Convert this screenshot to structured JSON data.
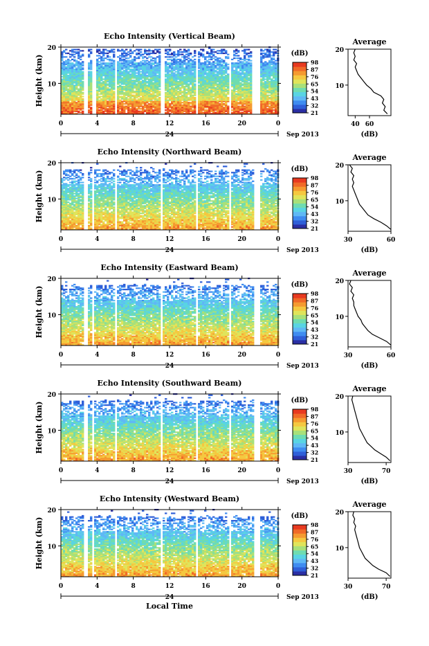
{
  "figure": {
    "unit_label": "(dB)",
    "date_label": "Sep 2013",
    "xlabel": "Local Time",
    "ylabel": "Height (km)",
    "day_label": "24",
    "colorbar_colors": [
      "#2b2fa4",
      "#2f5fd8",
      "#3f8cf0",
      "#5fb8f5",
      "#59d4e3",
      "#6fdcb0",
      "#a8e07a",
      "#e0e45a",
      "#f5c840",
      "#f59a30",
      "#f06a28",
      "#e83a20"
    ]
  },
  "chart_data": [
    {
      "type": "heatmap",
      "title": "Echo Intensity (Vertical Beam)",
      "xlabel": "",
      "ylabel": "Height (km)",
      "xlim": [
        0,
        24
      ],
      "ylim": [
        1.5,
        20
      ],
      "x_ticks": [
        "0",
        "4",
        "8",
        "12",
        "16",
        "20",
        "0"
      ],
      "y_ticks": [
        "20",
        "10"
      ],
      "colorbar": {
        "label": "(dB)",
        "ticks": [
          "98",
          "87",
          "76",
          "65",
          "54",
          "43",
          "32",
          "21"
        ]
      },
      "data_gaps_hours": [
        [
          2.5,
          2.9
        ],
        [
          3.4,
          3.7
        ],
        [
          5.8,
          6.0
        ],
        [
          11.0,
          11.3
        ],
        [
          14.9,
          15.1
        ],
        [
          18.4,
          18.6
        ],
        [
          21.0,
          21.9
        ]
      ],
      "echo_top_km": 19.5,
      "average_profile": {
        "title": "Average",
        "xlabel": "(dB)",
        "xlim": [
          30,
          90
        ],
        "x_ticks": [
          "40",
          "60"
        ],
        "y_ticks": [
          "20",
          "10"
        ],
        "height_km": [
          2,
          3,
          4,
          5,
          6,
          7,
          8,
          9,
          10,
          11,
          12,
          13,
          14,
          15,
          16,
          17,
          18,
          19,
          20
        ],
        "db": [
          85,
          80,
          82,
          78,
          80,
          76,
          66,
          62,
          56,
          52,
          48,
          44,
          42,
          40,
          42,
          38,
          40,
          38,
          40
        ]
      }
    },
    {
      "type": "heatmap",
      "title": "Echo Intensity (Northward Beam)",
      "xlabel": "",
      "ylabel": "Height (km)",
      "xlim": [
        0,
        24
      ],
      "ylim": [
        1.5,
        20
      ],
      "x_ticks": [
        "0",
        "4",
        "8",
        "12",
        "16",
        "20",
        "0"
      ],
      "y_ticks": [
        "20",
        "10"
      ],
      "colorbar": {
        "label": "(dB)",
        "ticks": [
          "98",
          "87",
          "76",
          "65",
          "54",
          "43",
          "32",
          "21"
        ]
      },
      "data_gaps_hours": [
        [
          2.5,
          2.8
        ],
        [
          3.3,
          3.6
        ],
        [
          5.8,
          6.0
        ],
        [
          11.0,
          11.2
        ],
        [
          14.9,
          15.1
        ],
        [
          18.4,
          18.6
        ],
        [
          21.2,
          21.8
        ]
      ],
      "echo_top_km": 18.0,
      "average_profile": {
        "title": "Average",
        "xlabel": "(dB)",
        "xlim": [
          30,
          60
        ],
        "x_ticks": [
          "30",
          "60"
        ],
        "y_ticks": [
          "20",
          "10"
        ],
        "height_km": [
          2,
          3,
          4,
          5,
          6,
          7,
          8,
          9,
          10,
          11,
          12,
          13,
          14,
          15,
          16,
          17,
          18,
          19,
          20
        ],
        "db": [
          60,
          57,
          53,
          48,
          44,
          42,
          40,
          38,
          37,
          36,
          35,
          34,
          33,
          34,
          33,
          34,
          32,
          33,
          31
        ]
      }
    },
    {
      "type": "heatmap",
      "title": "Echo Intensity (Eastward Beam)",
      "xlabel": "",
      "ylabel": "Height (km)",
      "xlim": [
        0,
        24
      ],
      "ylim": [
        1.5,
        20
      ],
      "x_ticks": [
        "0",
        "4",
        "8",
        "12",
        "16",
        "20",
        "0"
      ],
      "y_ticks": [
        "20",
        "10"
      ],
      "colorbar": {
        "label": "(dB)",
        "ticks": [
          "98",
          "87",
          "76",
          "65",
          "54",
          "43",
          "32",
          "21"
        ]
      },
      "data_gaps_hours": [
        [
          2.5,
          2.8
        ],
        [
          3.3,
          3.6
        ],
        [
          5.8,
          6.0
        ],
        [
          11.0,
          11.2
        ],
        [
          14.9,
          15.1
        ],
        [
          18.4,
          18.6
        ],
        [
          21.2,
          21.8
        ]
      ],
      "echo_top_km": 18.0,
      "average_profile": {
        "title": "Average",
        "xlabel": "(dB)",
        "xlim": [
          30,
          60
        ],
        "x_ticks": [
          "30",
          "60"
        ],
        "y_ticks": [
          "20",
          "10"
        ],
        "height_km": [
          2,
          3,
          4,
          5,
          6,
          7,
          8,
          9,
          10,
          11,
          12,
          13,
          14,
          15,
          16,
          17,
          18,
          19,
          20
        ],
        "db": [
          60,
          57,
          52,
          47,
          44,
          42,
          40,
          39,
          37,
          36,
          35,
          34,
          34,
          33,
          34,
          32,
          33,
          31,
          32
        ]
      }
    },
    {
      "type": "heatmap",
      "title": "Echo Intensity (Southward Beam)",
      "xlabel": "",
      "ylabel": "Height (km)",
      "xlim": [
        0,
        24
      ],
      "ylim": [
        1.5,
        20
      ],
      "x_ticks": [
        "0",
        "4",
        "8",
        "12",
        "16",
        "20",
        "0"
      ],
      "y_ticks": [
        "20",
        "10"
      ],
      "colorbar": {
        "label": "(dB)",
        "ticks": [
          "98",
          "87",
          "76",
          "65",
          "54",
          "43",
          "32",
          "21"
        ]
      },
      "data_gaps_hours": [
        [
          2.5,
          2.8
        ],
        [
          3.3,
          3.6
        ],
        [
          5.8,
          6.0
        ],
        [
          11.0,
          11.2
        ],
        [
          14.9,
          15.1
        ],
        [
          18.4,
          18.6
        ],
        [
          21.2,
          21.8
        ]
      ],
      "echo_top_km": 18.0,
      "average_profile": {
        "title": "Average",
        "xlabel": "(dB)",
        "xlim": [
          30,
          75
        ],
        "x_ticks": [
          "30",
          "70"
        ],
        "y_ticks": [
          "20",
          "10"
        ],
        "height_km": [
          2,
          3,
          4,
          5,
          6,
          7,
          8,
          9,
          10,
          11,
          12,
          13,
          14,
          15,
          16,
          17,
          18,
          19,
          20
        ],
        "db": [
          74,
          70,
          64,
          58,
          54,
          50,
          48,
          46,
          44,
          42,
          41,
          40,
          39,
          38,
          37,
          36,
          35,
          34,
          35
        ]
      }
    },
    {
      "type": "heatmap",
      "title": "Echo Intensity (Westward Beam)",
      "xlabel": "Local Time",
      "ylabel": "Height (km)",
      "xlim": [
        0,
        24
      ],
      "ylim": [
        1.5,
        20
      ],
      "x_ticks": [
        "0",
        "4",
        "8",
        "12",
        "16",
        "20",
        "0"
      ],
      "y_ticks": [
        "20",
        "10"
      ],
      "colorbar": {
        "label": "(dB)",
        "ticks": [
          "98",
          "87",
          "76",
          "65",
          "54",
          "43",
          "32",
          "21"
        ]
      },
      "data_gaps_hours": [
        [
          2.5,
          2.8
        ],
        [
          3.3,
          3.6
        ],
        [
          5.8,
          6.0
        ],
        [
          11.0,
          11.2
        ],
        [
          14.9,
          15.1
        ],
        [
          18.4,
          18.6
        ],
        [
          21.2,
          21.8
        ]
      ],
      "echo_top_km": 18.0,
      "average_profile": {
        "title": "Average",
        "xlabel": "(dB)",
        "xlim": [
          30,
          75
        ],
        "x_ticks": [
          "30",
          "70"
        ],
        "y_ticks": [
          "20",
          "10"
        ],
        "height_km": [
          2,
          3,
          4,
          5,
          6,
          7,
          8,
          9,
          10,
          11,
          12,
          13,
          14,
          15,
          16,
          17,
          18,
          19,
          20
        ],
        "db": [
          74,
          70,
          62,
          56,
          52,
          48,
          46,
          44,
          42,
          41,
          40,
          39,
          38,
          37,
          38,
          36,
          37,
          35,
          36
        ]
      }
    }
  ]
}
